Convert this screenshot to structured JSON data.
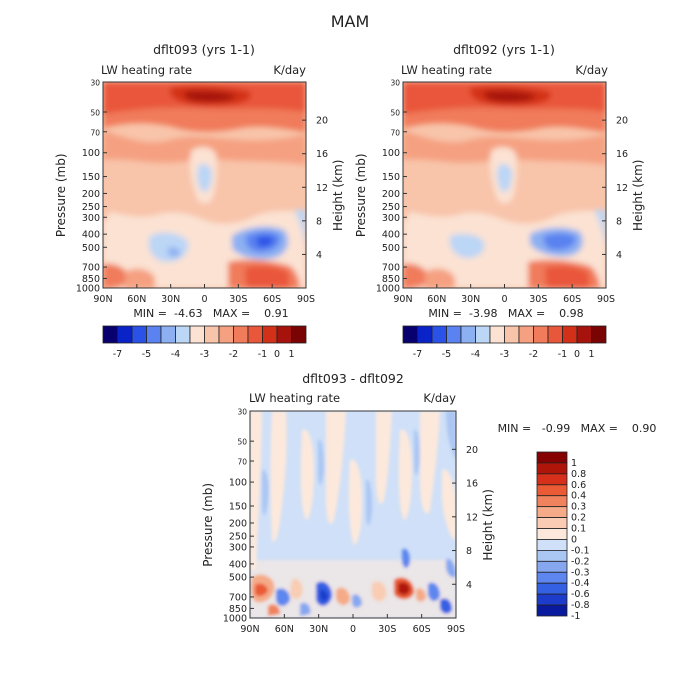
{
  "page": {
    "title": "MAM"
  },
  "colors": {
    "full_palette": [
      "#08006e",
      "#0a23c8",
      "#2a52e6",
      "#5a82f0",
      "#8db0f2",
      "#bcd6f6",
      "#fbe2d3",
      "#f8c4aa",
      "#f5a081",
      "#f07c5b",
      "#e9573a",
      "#d33019",
      "#a6120c",
      "#7a0303"
    ],
    "diff_palette": [
      "#0a1a9e",
      "#1e3ccc",
      "#3461e3",
      "#5d86ee",
      "#86a7f0",
      "#aac6f3",
      "#cfe0f8",
      "#fde9dc",
      "#f9ccb3",
      "#f5aa88",
      "#f0835e",
      "#e95a35",
      "#d6301a",
      "#b0150a",
      "#860202"
    ],
    "axis": "#333333"
  },
  "panels": [
    {
      "id": "left",
      "title": "dflt093 (yrs 1-1)",
      "left_label": "LW heating rate",
      "right_label": "K/day",
      "stats": "MIN =  -4.63   MAX =    0.91"
    },
    {
      "id": "right",
      "title": "dflt092 (yrs 1-1)",
      "left_label": "LW heating rate",
      "right_label": "K/day",
      "stats": "MIN =  -3.98   MAX =    0.98"
    },
    {
      "id": "diff",
      "title": "dflt093 - dflt092",
      "left_label": "LW heating rate",
      "right_label": "K/day",
      "stats": "MIN =   -0.99   MAX =    0.90"
    }
  ],
  "axes": {
    "ylabel": "Pressure (mb)",
    "y2label": "Height (km)",
    "x_ticks": [
      "90N",
      "60N",
      "30N",
      "0",
      "30S",
      "60S",
      "90S"
    ],
    "x_values": [
      90,
      60,
      30,
      0,
      -30,
      -60,
      -90
    ],
    "p_ticks": [
      "30",
      "50",
      "70",
      "100",
      "150",
      "200",
      "250",
      "300",
      "400",
      "500",
      "700",
      "850",
      "1000"
    ],
    "p_values": [
      30,
      50,
      70,
      100,
      150,
      200,
      250,
      300,
      400,
      500,
      700,
      850,
      1000
    ],
    "h_ticks": [
      "20",
      "16",
      "12",
      "8",
      "4"
    ],
    "h_values": [
      20,
      16,
      12,
      8,
      4
    ]
  },
  "colorbars": {
    "full_labels": [
      "-7",
      "-5",
      "-4",
      "-3",
      "-2",
      "-1",
      "0",
      "1"
    ],
    "diff_labels": [
      "1",
      "0.8",
      "0.6",
      "0.4",
      "0.3",
      "0.2",
      "0.1",
      "0",
      "-0.1",
      "-0.2",
      "-0.3",
      "-0.4",
      "-0.6",
      "-0.8",
      "-1"
    ]
  },
  "chart_data": [
    {
      "type": "heatmap",
      "title": "dflt093 (yrs 1-1)",
      "xlabel": "",
      "ylabel": "Pressure (mb)",
      "y2label": "Height (km)",
      "x": [
        90,
        75,
        60,
        45,
        30,
        15,
        0,
        -15,
        -30,
        -45,
        -60,
        -75,
        -90
      ],
      "y": [
        30,
        70,
        100,
        150,
        200,
        300,
        400,
        500,
        700,
        850,
        1000
      ],
      "z": [
        [
          -2,
          -2,
          -2,
          -2,
          -2,
          -2,
          -2,
          -2,
          -2,
          -2,
          -2,
          -2,
          -2
        ],
        [
          -1,
          -1,
          -1,
          -0.5,
          -0.5,
          0,
          0,
          0,
          -0.5,
          -0.5,
          -1,
          -1,
          -1
        ],
        [
          -1,
          -1,
          -1,
          -0.5,
          0,
          0,
          0.5,
          0,
          0,
          -0.5,
          -1,
          -1,
          -1
        ],
        [
          -1,
          -1,
          -1,
          -1,
          -0.5,
          -0.5,
          -0.5,
          -0.5,
          -0.5,
          -1,
          -1,
          -1,
          -1
        ],
        [
          -1,
          -1,
          -0.5,
          -1,
          -1,
          -1,
          -1,
          -1,
          -1,
          -1,
          -1,
          -0.5,
          -1
        ],
        [
          -2,
          -2,
          -1,
          -2,
          -2,
          -2,
          -2,
          -2,
          -2,
          -2,
          -1,
          -2,
          -2
        ],
        [
          -2,
          -2,
          -2,
          -2,
          -2,
          -2,
          -2,
          -2,
          -2,
          -2,
          -2,
          -2,
          -2
        ],
        [
          -2,
          -2,
          -2,
          -2,
          -2,
          -2,
          -3,
          -2,
          -2,
          -2,
          -2,
          -2,
          -2
        ],
        [
          -2,
          -3,
          -2,
          -2,
          -2,
          -2,
          -2,
          -2,
          -3,
          -2,
          -2,
          -3,
          -2
        ],
        [
          -1,
          -2,
          -2,
          -2,
          -3,
          -2,
          -2,
          -2,
          -4,
          -4,
          -3,
          -3,
          -2
        ],
        [
          -1,
          -1,
          -1,
          -2,
          -2,
          -2,
          -2,
          -2,
          -1,
          -1,
          -1,
          -2,
          -2
        ]
      ],
      "min": -4.63,
      "max": 0.91,
      "colorbar_levels": [
        -7,
        -5,
        -4,
        -3,
        -2,
        -1,
        0,
        1
      ]
    },
    {
      "type": "heatmap",
      "title": "dflt092 (yrs 1-1)",
      "xlabel": "",
      "ylabel": "Pressure (mb)",
      "y2label": "Height (km)",
      "x": [
        90,
        75,
        60,
        45,
        30,
        15,
        0,
        -15,
        -30,
        -45,
        -60,
        -75,
        -90
      ],
      "y": [
        30,
        70,
        100,
        150,
        200,
        300,
        400,
        500,
        700,
        850,
        1000
      ],
      "z": [
        [
          -2,
          -2,
          -2,
          -2,
          -2,
          -2,
          -2,
          -2,
          -2,
          -2,
          -2,
          -2,
          -2
        ],
        [
          -1,
          -1,
          -1,
          -0.5,
          -0.5,
          0,
          0,
          0,
          -0.5,
          -0.5,
          -1,
          -1,
          -1
        ],
        [
          -1,
          -1,
          -1,
          -0.5,
          0,
          0,
          0.5,
          0,
          0,
          -0.5,
          -1,
          -1,
          -1
        ],
        [
          -1,
          -1,
          -1,
          -1,
          -0.5,
          -0.5,
          -0.5,
          -0.5,
          -0.5,
          -1,
          -1,
          -1,
          -1
        ],
        [
          -1,
          -1,
          -0.5,
          -1,
          -1,
          -1,
          -1,
          -1,
          -1,
          -1,
          -1,
          -0.5,
          -1
        ],
        [
          -2,
          -2,
          -1,
          -2,
          -2,
          -2,
          -2,
          -2,
          -2,
          -2,
          -1,
          -2,
          -2
        ],
        [
          -2,
          -2,
          -2,
          -2,
          -2,
          -2,
          -2,
          -2,
          -2,
          -2,
          -2,
          -2,
          -2
        ],
        [
          -2,
          -2,
          -2,
          -2,
          -2,
          -2,
          -3,
          -2,
          -2,
          -2,
          -2,
          -2,
          -2
        ],
        [
          -2,
          -3,
          -2,
          -2,
          -2,
          -2,
          -2,
          -2,
          -3,
          -2,
          -2,
          -3,
          -2
        ],
        [
          -1,
          -2,
          -2,
          -2,
          -2,
          -2,
          -2,
          -2,
          -3,
          -3,
          -2,
          -2,
          -2
        ],
        [
          -1,
          -1,
          -1,
          -2,
          -2,
          -2,
          -2,
          -2,
          -1,
          -1,
          -1,
          -2,
          -2
        ]
      ],
      "min": -3.98,
      "max": 0.98,
      "colorbar_levels": [
        -7,
        -5,
        -4,
        -3,
        -2,
        -1,
        0,
        1
      ]
    },
    {
      "type": "heatmap",
      "title": "dflt093 - dflt092",
      "xlabel": "",
      "ylabel": "Pressure (mb)",
      "y2label": "Height (km)",
      "x": [
        90,
        75,
        60,
        45,
        30,
        15,
        0,
        -15,
        -30,
        -45,
        -60,
        -75,
        -90
      ],
      "y": [
        30,
        100,
        200,
        300,
        400,
        500,
        700,
        850,
        1000
      ],
      "z": [
        [
          0,
          0.1,
          0,
          -0.1,
          0,
          0,
          -0.1,
          0,
          0,
          -0.1,
          0,
          0,
          -0.1
        ],
        [
          0,
          -0.1,
          0,
          0.1,
          -0.1,
          0,
          0,
          -0.1,
          0.1,
          0,
          -0.1,
          0,
          0
        ],
        [
          0.1,
          0,
          -0.1,
          0,
          0.1,
          0,
          -0.1,
          0,
          0,
          0.1,
          0,
          -0.1,
          0
        ],
        [
          0.1,
          0.1,
          0,
          -0.1,
          0.1,
          0.1,
          0,
          -0.1,
          0.1,
          0,
          0.1,
          0,
          -0.1
        ],
        [
          0.1,
          0,
          0.1,
          -0.1,
          0,
          0.1,
          0.1,
          -0.1,
          0,
          0.1,
          -0.1,
          0,
          -0.1
        ],
        [
          0,
          0.1,
          -0.1,
          0,
          0.1,
          -0.1,
          0,
          0.1,
          -0.1,
          0,
          0.1,
          -0.1,
          0
        ],
        [
          0,
          -0.1,
          0.1,
          0,
          -0.1,
          0,
          0.1,
          -0.1,
          0,
          -0.2,
          0.1,
          -0.1,
          -0.3
        ],
        [
          0.4,
          -0.3,
          -0.2,
          0.2,
          -0.4,
          0.1,
          -0.1,
          0.2,
          -0.1,
          0.6,
          0.3,
          -0.2,
          -0.4
        ],
        [
          0.3,
          -0.2,
          0.1,
          -0.6,
          -0.3,
          0.2,
          0,
          -0.1,
          0.1,
          0.2,
          -0.2,
          -0.3,
          0
        ]
      ],
      "min": -0.99,
      "max": 0.9,
      "colorbar_levels": [
        1,
        0.8,
        0.6,
        0.4,
        0.3,
        0.2,
        0.1,
        0,
        -0.1,
        -0.2,
        -0.3,
        -0.4,
        -0.6,
        -0.8,
        -1
      ]
    }
  ]
}
